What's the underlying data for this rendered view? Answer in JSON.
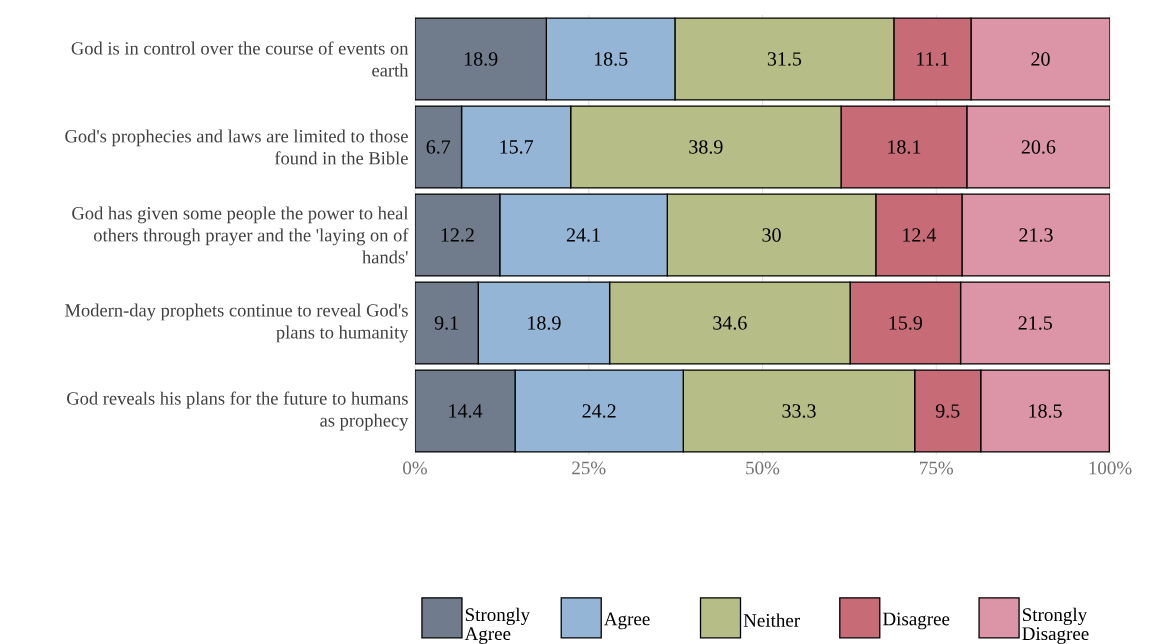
{
  "chart_data": {
    "type": "bar",
    "orientation": "horizontal",
    "stacked": true,
    "data_labels": true,
    "grid": "x",
    "legend": "bottom",
    "categories": [
      "God is in control over the course of events on earth",
      "God's prophecies and laws are limited to those found in the Bible",
      "God has given some people the power to heal others through prayer and the 'laying on of hands'",
      "Modern-day prophets continue to reveal God's plans to humanity",
      "God reveals his plans for the future to humans as prophecy"
    ],
    "xlim": [
      0,
      100
    ],
    "xticks": [
      {
        "value": 0,
        "label": "0%"
      },
      {
        "value": 25,
        "label": "25%"
      },
      {
        "value": 50,
        "label": "50%"
      },
      {
        "value": 75,
        "label": "75%"
      },
      {
        "value": 100,
        "label": "100%"
      }
    ],
    "series": [
      {
        "name": "Strongly Agree",
        "color": "#707c8b",
        "values": [
          18.9,
          6.7,
          12.2,
          9.1,
          14.4
        ]
      },
      {
        "name": "Agree",
        "color": "#95b5d6",
        "values": [
          18.5,
          15.7,
          24.1,
          18.9,
          24.2
        ]
      },
      {
        "name": "Neither",
        "color": "#b6bd86",
        "values": [
          31.5,
          38.9,
          30,
          34.6,
          33.3
        ]
      },
      {
        "name": "Disagree",
        "color": "#c76b77",
        "values": [
          11.1,
          18.1,
          12.4,
          15.9,
          9.5
        ]
      },
      {
        "name": "Strongly Disagree",
        "color": "#dc95a7",
        "values": [
          20,
          20.6,
          21.3,
          21.5,
          18.5
        ]
      }
    ]
  }
}
